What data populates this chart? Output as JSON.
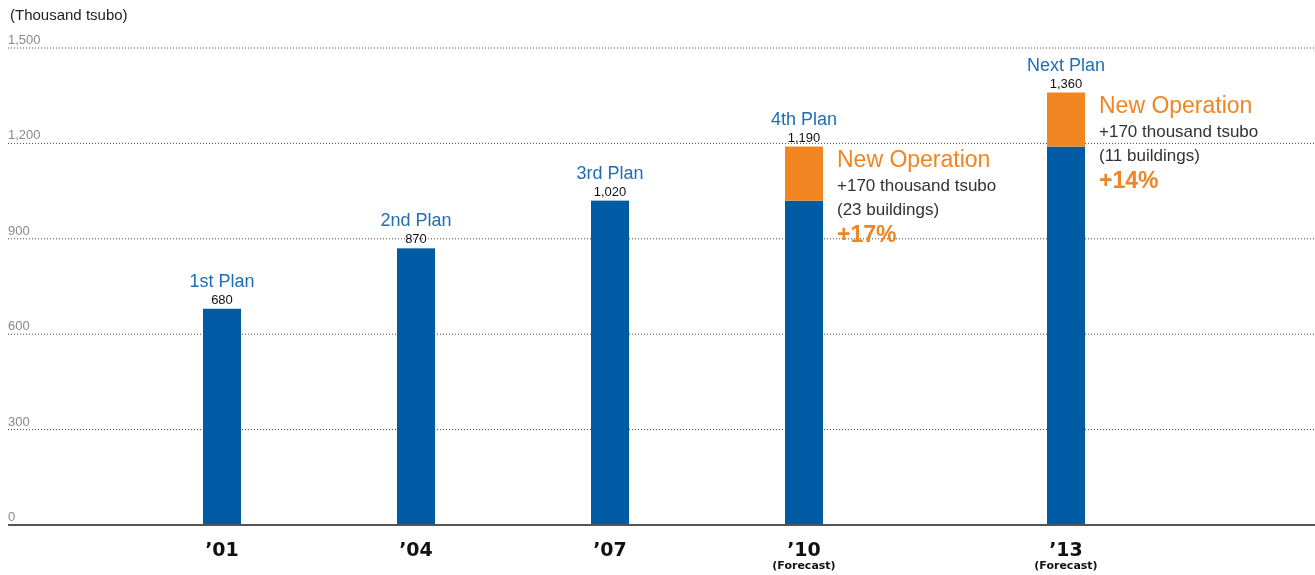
{
  "chart_data": {
    "type": "bar",
    "ylabel": "(Thousand tsubo)",
    "categories": [
      "’01",
      "’04",
      "’07",
      "’10\n(Forecast)",
      "’13\n(Forecast)"
    ],
    "series": [
      {
        "color": "#005ba5",
        "values": [
          680,
          870,
          1020,
          1020,
          1190
        ]
      },
      {
        "color": "#f08522",
        "values": [
          null,
          null,
          null,
          170,
          170
        ]
      }
    ],
    "stacked": true,
    "totals": [
      "680",
      "870",
      "1,020",
      "1,190",
      "1,360"
    ],
    "ylim": [
      0,
      1500
    ],
    "yticks": [
      0,
      300,
      600,
      900,
      {
        "value": 1200,
        "label": "1,200"
      },
      {
        "value": 1500,
        "label": "1,500"
      }
    ],
    "grid": "y",
    "annotations": [
      {
        "text": "1st Plan",
        "x": "’01",
        "y": 680
      },
      {
        "text": "2nd Plan",
        "x": "’04",
        "y": 870
      },
      {
        "text": "3rd Plan",
        "x": "’07",
        "y": 1020
      },
      {
        "text": "4th Plan",
        "x": "’10\n(Forecast)",
        "y": 1190
      },
      {
        "text": "Next Plan",
        "x": "’13\n(Forecast)",
        "y": 1360
      },
      {
        "text": "New Operation\n+170 thousand tsubo\n(23 buildings)\n+17%",
        "x": "’10\n(Forecast)",
        "y": 1190
      },
      {
        "text": "New Operation\n+170 thousand tsubo\n(11 buildings)\n+14%",
        "x": "’13\n(Forecast)",
        "y": 1360
      }
    ]
  }
}
